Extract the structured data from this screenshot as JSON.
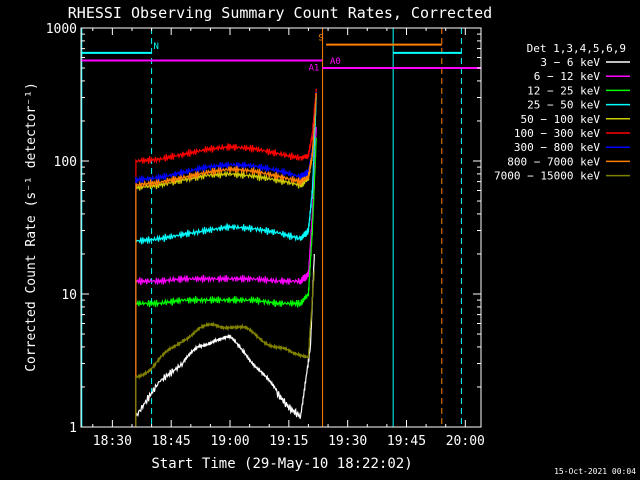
{
  "chart_data": {
    "type": "line",
    "title": "RHESSI Observing Summary Count Rates, Corrected",
    "xlabel": "Start Time (29-May-10 18:22:02)",
    "ylabel": "Corrected Count Rate (s⁻¹ detector⁻¹)",
    "yscale": "log",
    "ylim": [
      1,
      1000
    ],
    "xlim_minutes_after_18_00": [
      22,
      124
    ],
    "x_ticks": [
      {
        "label": "18:30",
        "minute": 30
      },
      {
        "label": "18:45",
        "minute": 45
      },
      {
        "label": "19:00",
        "minute": 60
      },
      {
        "label": "19:15",
        "minute": 75
      },
      {
        "label": "19:30",
        "minute": 90
      },
      {
        "label": "19:45",
        "minute": 105
      },
      {
        "label": "20:00",
        "minute": 120
      }
    ],
    "y_ticks": [
      {
        "label": "1",
        "value": 1
      },
      {
        "label": "10",
        "value": 10
      },
      {
        "label": "100",
        "value": 100
      },
      {
        "label": "1000",
        "value": 1000
      }
    ],
    "legend": {
      "placement": "right",
      "title": "Det 1,3,4,5,6,9",
      "entries": [
        {
          "label": "3 − 6 keV",
          "color": "#ffffff"
        },
        {
          "label": "6 − 12 keV",
          "color": "#ff00ff"
        },
        {
          "label": "12 − 25 keV",
          "color": "#00ff00"
        },
        {
          "label": "25 − 50 keV",
          "color": "#00ffff"
        },
        {
          "label": "50 − 100 keV",
          "color": "#cccc00"
        },
        {
          "label": "100 − 300 keV",
          "color": "#ff0000"
        },
        {
          "label": "300 − 800 keV",
          "color": "#0000ff"
        },
        {
          "label": "800 − 7000 keV",
          "color": "#ff8000"
        },
        {
          "label": "7000 − 15000 keV",
          "color": "#808000"
        }
      ]
    },
    "series": [
      {
        "name": "3 − 6 keV",
        "color": "#ffffff",
        "x_minutes": [
          36,
          42,
          48,
          52,
          56,
          60,
          64,
          68,
          72,
          75,
          78,
          80.5,
          81.5
        ],
        "values": [
          1.2,
          2.2,
          3.0,
          4.0,
          4.6,
          4.6,
          3.6,
          2.6,
          1.8,
          1.4,
          1.2,
          4.0,
          20
        ]
      },
      {
        "name": "6 − 12 keV",
        "color": "#ff00ff",
        "x_minutes": [
          36,
          42,
          48,
          54,
          60,
          66,
          72,
          78,
          80,
          81,
          82
        ],
        "values": [
          12.5,
          12.5,
          13,
          13,
          13,
          13,
          12.5,
          12.5,
          14,
          40,
          180
        ]
      },
      {
        "name": "12 − 25 keV",
        "color": "#00ff00",
        "x_minutes": [
          36,
          42,
          48,
          54,
          60,
          66,
          72,
          78,
          80,
          81,
          82
        ],
        "values": [
          8.5,
          8.5,
          9,
          9,
          9,
          9,
          8.5,
          8.5,
          10,
          30,
          150
        ]
      },
      {
        "name": "25 − 50 keV",
        "color": "#00ffff",
        "x_minutes": [
          36,
          42,
          48,
          54,
          60,
          66,
          72,
          78,
          80,
          81,
          82
        ],
        "values": [
          25,
          26,
          28,
          30,
          32,
          31,
          29,
          26,
          30,
          60,
          300
        ]
      },
      {
        "name": "50 − 100 keV",
        "color": "#cccc00",
        "x_minutes": [
          36,
          42,
          48,
          54,
          60,
          66,
          72,
          78,
          80,
          81,
          82
        ],
        "values": [
          63,
          66,
          72,
          78,
          80,
          77,
          72,
          66,
          75,
          110,
          320
        ]
      },
      {
        "name": "100 − 300 keV",
        "color": "#ff0000",
        "x_minutes": [
          36,
          42,
          48,
          54,
          60,
          66,
          72,
          78,
          80,
          81,
          82
        ],
        "values": [
          100,
          103,
          112,
          122,
          128,
          124,
          114,
          105,
          110,
          160,
          350
        ]
      },
      {
        "name": "300 − 800 keV",
        "color": "#0000ff",
        "x_minutes": [
          36,
          42,
          48,
          54,
          60,
          66,
          72,
          78,
          80,
          81,
          82
        ],
        "values": [
          72,
          75,
          82,
          90,
          94,
          92,
          85,
          76,
          82,
          120,
          330
        ]
      },
      {
        "name": "800 − 7000 keV",
        "color": "#ff8000",
        "x_minutes": [
          36,
          42,
          48,
          54,
          60,
          66,
          72,
          78,
          80,
          81,
          82
        ],
        "values": [
          66,
          69,
          75,
          82,
          87,
          84,
          77,
          70,
          76,
          115,
          325
        ]
      },
      {
        "name": "7000 − 15000 keV",
        "color": "#808000",
        "x_minutes": [
          36,
          40,
          44,
          48,
          52,
          56,
          60,
          64,
          68,
          72,
          76,
          80,
          81.5
        ],
        "values": [
          2.4,
          2.8,
          3.6,
          4.6,
          5.4,
          5.8,
          5.8,
          5.4,
          4.6,
          4.0,
          3.5,
          3.5,
          15
        ]
      }
    ],
    "annotations": [
      {
        "label": "N",
        "color": "#00ffff",
        "level": 650,
        "x_start": 22,
        "x_end": 40,
        "label_minute": 40.5
      },
      {
        "label": "S",
        "color": "#ff8000",
        "level": 750,
        "x_start": 84.5,
        "x_end": 114,
        "label_minute": 82.5
      },
      {
        "label": "A0",
        "color": "#ff00ff",
        "level": 500,
        "x_start": 83.5,
        "x_end": 124,
        "label_minute": 85.5
      },
      {
        "label": "A1",
        "color": "#ff00ff",
        "level": 570,
        "x_start": 22,
        "x_end": 83.5,
        "label_minute": 80
      }
    ],
    "vertical_lines": [
      {
        "minute": 22.2,
        "color": "#00ffff",
        "style": "solid"
      },
      {
        "minute": 40,
        "color": "#00ffff",
        "style": "dashed"
      },
      {
        "minute": 83.6,
        "color": "#ff8000",
        "style": "solid"
      },
      {
        "minute": 101.6,
        "color": "#00ffff",
        "style": "solid"
      },
      {
        "minute": 114,
        "color": "#ff8000",
        "style": "dashed"
      },
      {
        "minute": 119,
        "color": "#00ffff",
        "style": "dashed"
      }
    ],
    "cyan_segment_after": {
      "level": 650,
      "x_start": 101.6,
      "x_end": 119
    },
    "grid": false
  },
  "timestamp": "15-Oct-2021 00:04"
}
